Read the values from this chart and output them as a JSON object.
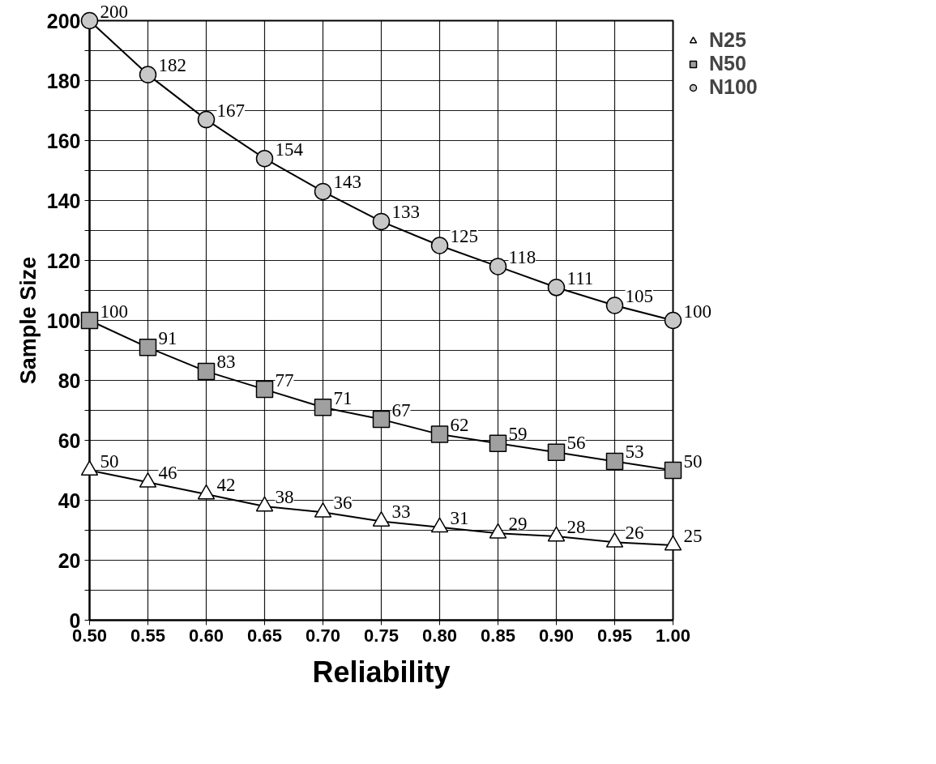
{
  "chart_data": {
    "type": "line",
    "xlabel": "Reliability",
    "ylabel": "Sample Size",
    "x": [
      0.5,
      0.55,
      0.6,
      0.65,
      0.7,
      0.75,
      0.8,
      0.85,
      0.9,
      0.95,
      1.0
    ],
    "series": [
      {
        "name": "N25",
        "color": "#000000",
        "marker": "triangle",
        "values": [
          50,
          46,
          42,
          38,
          36,
          33,
          31,
          29,
          28,
          26,
          25
        ]
      },
      {
        "name": "N50",
        "color": "#000000",
        "marker": "square",
        "values": [
          100,
          91,
          83,
          77,
          71,
          67,
          62,
          59,
          56,
          53,
          50
        ]
      },
      {
        "name": "N100",
        "color": "#000000",
        "marker": "circle",
        "values": [
          200,
          182,
          167,
          154,
          143,
          133,
          125,
          118,
          111,
          105,
          100
        ]
      }
    ],
    "xlim": [
      0.5,
      1.0
    ],
    "xticks": [
      {
        "value": 0.5,
        "label": "0.50"
      },
      {
        "value": 0.55,
        "label": "0.55"
      },
      {
        "value": 0.6,
        "label": "0.60"
      },
      {
        "value": 0.65,
        "label": "0.65"
      },
      {
        "value": 0.7,
        "label": "0.70"
      },
      {
        "value": 0.75,
        "label": "0.75"
      },
      {
        "value": 0.8,
        "label": "0.80"
      },
      {
        "value": 0.85,
        "label": "0.85"
      },
      {
        "value": 0.9,
        "label": "0.90"
      },
      {
        "value": 0.95,
        "label": "0.95"
      },
      {
        "value": 1.0,
        "label": "1.00"
      }
    ],
    "ylim": [
      0,
      200
    ],
    "yticks": [
      0,
      {
        "value": 10,
        "label": null
      },
      20,
      {
        "value": 30,
        "label": null
      },
      40,
      {
        "value": 50,
        "label": null
      },
      60,
      {
        "value": 70,
        "label": null
      },
      80,
      {
        "value": 90,
        "label": null
      },
      100,
      {
        "value": 110,
        "label": null
      },
      120,
      {
        "value": 130,
        "label": null
      },
      140,
      {
        "value": 150,
        "label": null
      },
      160,
      {
        "value": 170,
        "label": null
      },
      180,
      {
        "value": 190,
        "label": null
      },
      200
    ],
    "grid": true,
    "legend": "top right",
    "data_labels": true,
    "line_style": "solid"
  }
}
